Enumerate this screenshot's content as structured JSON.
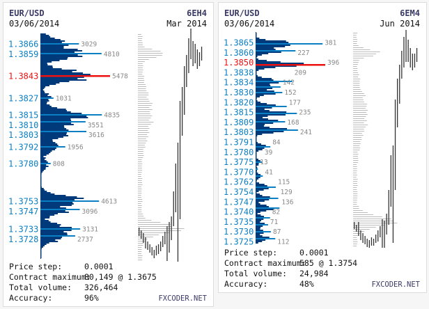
{
  "colors": {
    "profile": "#003a7a",
    "level": "#0a7fc4",
    "poc": "#ee1111",
    "label": "#0a7fc4",
    "value": "#888888",
    "ghost": "#bbbbbb",
    "candle": "#333333"
  },
  "panels": [
    {
      "symbol": "EUR/USD",
      "date": "03/06/2014",
      "contract": "6EH4",
      "expiry": "Mar 2014",
      "stats": [
        {
          "label": "Price step:",
          "value": "0.0001"
        },
        {
          "label": "Contract maximum:",
          "value": "80,149 @ 1.3675"
        },
        {
          "label": "Total volume:",
          "value": "326,464"
        },
        {
          "label": "Accuracy:",
          "value": "96%"
        }
      ],
      "brand": "FXCODER.NET"
    },
    {
      "symbol": "EUR/USD",
      "date": "03/06/2014",
      "contract": "6EM4",
      "expiry": "Jun 2014",
      "stats": [
        {
          "label": "Price step:",
          "value": "0.0001"
        },
        {
          "label": "Contract maximum:",
          "value": "585 @ 1.3754"
        },
        {
          "label": "Total volume:",
          "value": "24,984"
        },
        {
          "label": "Accuracy:",
          "value": "48%"
        }
      ],
      "brand": "FXCODER.NET"
    }
  ],
  "chart_data": [
    {
      "type": "bar",
      "orientation": "horizontal",
      "title": "EUR/USD 6EH4 Mar 2014 volume profile",
      "price_range": [
        1.3712,
        1.3873
      ],
      "poc": {
        "price": "1.3843",
        "volume": "5478"
      },
      "levels": [
        {
          "price": "1.3866",
          "volume": "3029"
        },
        {
          "price": "1.3859",
          "volume": "4810"
        },
        {
          "price": "1.3843",
          "volume": "5478"
        },
        {
          "price": "1.3827",
          "volume": "1031"
        },
        {
          "price": "1.3815",
          "volume": "4835"
        },
        {
          "price": "1.3810",
          "volume": "3551"
        },
        {
          "price": "1.3803",
          "volume": "3616"
        },
        {
          "price": "1.3792",
          "volume": "1956"
        },
        {
          "price": "1.3780",
          "volume": "808"
        },
        {
          "price": "1.3753",
          "volume": "4613"
        },
        {
          "price": "1.3747",
          "volume": "3096"
        },
        {
          "price": "1.3733",
          "volume": "3131"
        },
        {
          "price": "1.3728",
          "volume": "2737"
        }
      ],
      "candles": [
        [
          1.3728,
          1.3734
        ],
        [
          1.3726,
          1.3732
        ],
        [
          1.3723,
          1.373
        ],
        [
          1.3719,
          1.3727
        ],
        [
          1.3718,
          1.3724
        ],
        [
          1.3716,
          1.3722
        ],
        [
          1.3714,
          1.372
        ],
        [
          1.3712,
          1.3718
        ],
        [
          1.3714,
          1.3721
        ],
        [
          1.3715,
          1.3722
        ],
        [
          1.3717,
          1.3724
        ],
        [
          1.372,
          1.3728
        ],
        [
          1.3722,
          1.3731
        ],
        [
          1.371,
          1.3735
        ],
        [
          1.3716,
          1.3738
        ],
        [
          1.3725,
          1.3742
        ],
        [
          1.3735,
          1.376
        ],
        [
          1.3745,
          1.378
        ],
        [
          1.3705,
          1.3795
        ],
        [
          1.374,
          1.3825
        ],
        [
          1.38,
          1.3835
        ],
        [
          1.3815,
          1.385
        ],
        [
          1.3835,
          1.3858
        ],
        [
          1.3845,
          1.387
        ],
        [
          1.3855,
          1.3877
        ],
        [
          1.385,
          1.3868
        ],
        [
          1.3852,
          1.3866
        ],
        [
          1.3848,
          1.3862
        ],
        [
          1.385,
          1.386
        ],
        [
          1.3854,
          1.3864
        ]
      ]
    },
    {
      "type": "bar",
      "orientation": "horizontal",
      "title": "EUR/USD 6EM4 Jun 2014 volume profile",
      "price_range": [
        1.3722,
        1.3873
      ],
      "poc": {
        "price": "1.3850",
        "volume": "396"
      },
      "levels": [
        {
          "price": "1.3865",
          "volume": "381"
        },
        {
          "price": "1.3860",
          "volume": "227"
        },
        {
          "price": "1.3850",
          "volume": "396"
        },
        {
          "price": "1.3838",
          "volume": "209"
        },
        {
          "price": "1.3834",
          "volume": "142"
        },
        {
          "price": "1.3830",
          "volume": "152"
        },
        {
          "price": "1.3820",
          "volume": "177"
        },
        {
          "price": "1.3815",
          "volume": "235"
        },
        {
          "price": "1.3809",
          "volume": "168"
        },
        {
          "price": "1.3803",
          "volume": "241"
        },
        {
          "price": "1.3791",
          "volume": "84"
        },
        {
          "price": "1.3780",
          "volume": "39"
        },
        {
          "price": "1.3775",
          "volume": "13"
        },
        {
          "price": "1.3770",
          "volume": "41"
        },
        {
          "price": "1.3762",
          "volume": "115"
        },
        {
          "price": "1.3754",
          "volume": "129"
        },
        {
          "price": "1.3747",
          "volume": "136"
        },
        {
          "price": "1.3740",
          "volume": "82"
        },
        {
          "price": "1.3735",
          "volume": "71"
        },
        {
          "price": "1.3730",
          "volume": "87"
        },
        {
          "price": "1.3725",
          "volume": "112"
        }
      ],
      "candles": [
        [
          1.3732,
          1.3737
        ],
        [
          1.373,
          1.3735
        ],
        [
          1.3727,
          1.3737
        ],
        [
          1.3724,
          1.3731
        ],
        [
          1.3722,
          1.3729
        ],
        [
          1.3721,
          1.3727
        ],
        [
          1.3719,
          1.3725
        ],
        [
          1.3718,
          1.3724
        ],
        [
          1.372,
          1.3726
        ],
        [
          1.372,
          1.3725
        ],
        [
          1.3722,
          1.3728
        ],
        [
          1.3723,
          1.3731
        ],
        [
          1.3726,
          1.3734
        ],
        [
          1.3714,
          1.3739
        ],
        [
          1.3718,
          1.3738
        ],
        [
          1.3728,
          1.3743
        ],
        [
          1.3735,
          1.376
        ],
        [
          1.3748,
          1.3785
        ],
        [
          1.3722,
          1.3792
        ],
        [
          1.376,
          1.3825
        ],
        [
          1.3805,
          1.384
        ],
        [
          1.3822,
          1.385
        ],
        [
          1.384,
          1.386
        ],
        [
          1.3848,
          1.387
        ],
        [
          1.3852,
          1.3875
        ],
        [
          1.3852,
          1.3868
        ],
        [
          1.3848,
          1.3862
        ],
        [
          1.3846,
          1.3858
        ],
        [
          1.3848,
          1.3858
        ],
        [
          1.3852,
          1.3862
        ]
      ]
    }
  ]
}
